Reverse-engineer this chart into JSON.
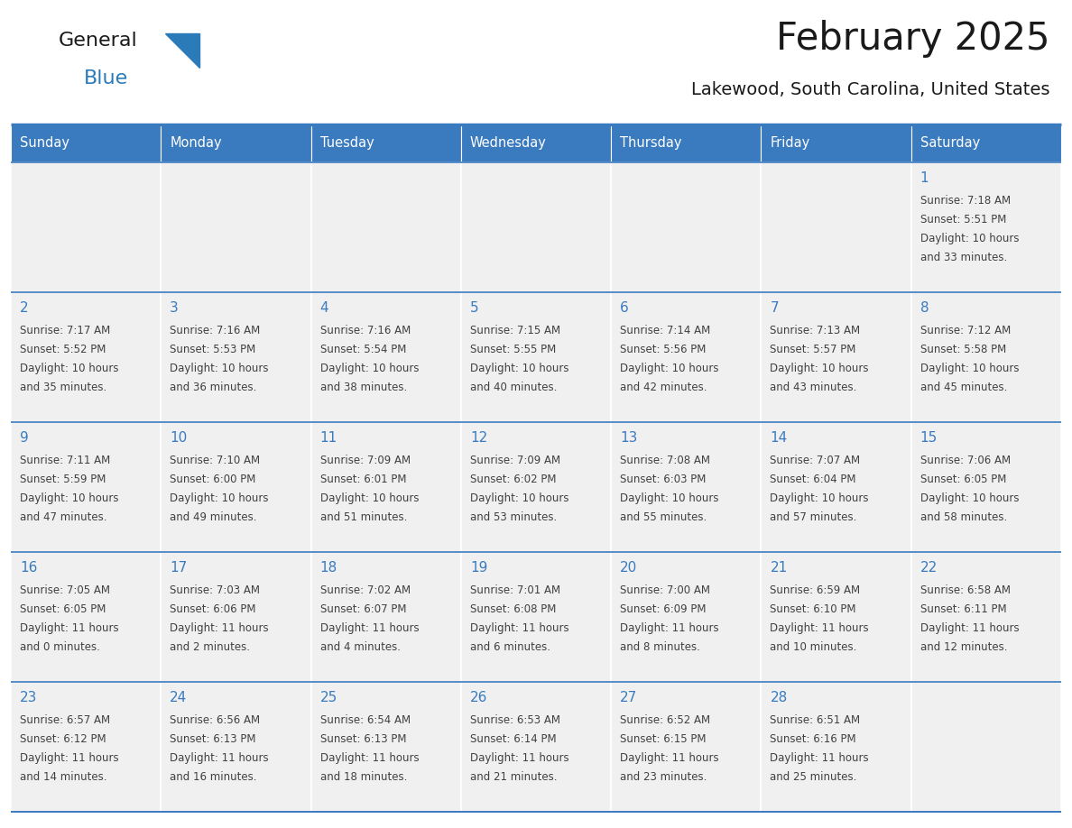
{
  "title": "February 2025",
  "subtitle": "Lakewood, South Carolina, United States",
  "header_color": "#3a7abf",
  "header_text_color": "#ffffff",
  "cell_bg_color": "#f0f0f0",
  "cell_border_color": "#3a7abf",
  "day_number_color": "#3a7abf",
  "text_color": "#404040",
  "days_of_week": [
    "Sunday",
    "Monday",
    "Tuesday",
    "Wednesday",
    "Thursday",
    "Friday",
    "Saturday"
  ],
  "calendar_data": [
    [
      null,
      null,
      null,
      null,
      null,
      null,
      {
        "day": 1,
        "sunrise": "7:18 AM",
        "sunset": "5:51 PM",
        "daylight_hrs": 10,
        "daylight_min": 33
      }
    ],
    [
      {
        "day": 2,
        "sunrise": "7:17 AM",
        "sunset": "5:52 PM",
        "daylight_hrs": 10,
        "daylight_min": 35
      },
      {
        "day": 3,
        "sunrise": "7:16 AM",
        "sunset": "5:53 PM",
        "daylight_hrs": 10,
        "daylight_min": 36
      },
      {
        "day": 4,
        "sunrise": "7:16 AM",
        "sunset": "5:54 PM",
        "daylight_hrs": 10,
        "daylight_min": 38
      },
      {
        "day": 5,
        "sunrise": "7:15 AM",
        "sunset": "5:55 PM",
        "daylight_hrs": 10,
        "daylight_min": 40
      },
      {
        "day": 6,
        "sunrise": "7:14 AM",
        "sunset": "5:56 PM",
        "daylight_hrs": 10,
        "daylight_min": 42
      },
      {
        "day": 7,
        "sunrise": "7:13 AM",
        "sunset": "5:57 PM",
        "daylight_hrs": 10,
        "daylight_min": 43
      },
      {
        "day": 8,
        "sunrise": "7:12 AM",
        "sunset": "5:58 PM",
        "daylight_hrs": 10,
        "daylight_min": 45
      }
    ],
    [
      {
        "day": 9,
        "sunrise": "7:11 AM",
        "sunset": "5:59 PM",
        "daylight_hrs": 10,
        "daylight_min": 47
      },
      {
        "day": 10,
        "sunrise": "7:10 AM",
        "sunset": "6:00 PM",
        "daylight_hrs": 10,
        "daylight_min": 49
      },
      {
        "day": 11,
        "sunrise": "7:09 AM",
        "sunset": "6:01 PM",
        "daylight_hrs": 10,
        "daylight_min": 51
      },
      {
        "day": 12,
        "sunrise": "7:09 AM",
        "sunset": "6:02 PM",
        "daylight_hrs": 10,
        "daylight_min": 53
      },
      {
        "day": 13,
        "sunrise": "7:08 AM",
        "sunset": "6:03 PM",
        "daylight_hrs": 10,
        "daylight_min": 55
      },
      {
        "day": 14,
        "sunrise": "7:07 AM",
        "sunset": "6:04 PM",
        "daylight_hrs": 10,
        "daylight_min": 57
      },
      {
        "day": 15,
        "sunrise": "7:06 AM",
        "sunset": "6:05 PM",
        "daylight_hrs": 10,
        "daylight_min": 58
      }
    ],
    [
      {
        "day": 16,
        "sunrise": "7:05 AM",
        "sunset": "6:05 PM",
        "daylight_hrs": 11,
        "daylight_min": 0
      },
      {
        "day": 17,
        "sunrise": "7:03 AM",
        "sunset": "6:06 PM",
        "daylight_hrs": 11,
        "daylight_min": 2
      },
      {
        "day": 18,
        "sunrise": "7:02 AM",
        "sunset": "6:07 PM",
        "daylight_hrs": 11,
        "daylight_min": 4
      },
      {
        "day": 19,
        "sunrise": "7:01 AM",
        "sunset": "6:08 PM",
        "daylight_hrs": 11,
        "daylight_min": 6
      },
      {
        "day": 20,
        "sunrise": "7:00 AM",
        "sunset": "6:09 PM",
        "daylight_hrs": 11,
        "daylight_min": 8
      },
      {
        "day": 21,
        "sunrise": "6:59 AM",
        "sunset": "6:10 PM",
        "daylight_hrs": 11,
        "daylight_min": 10
      },
      {
        "day": 22,
        "sunrise": "6:58 AM",
        "sunset": "6:11 PM",
        "daylight_hrs": 11,
        "daylight_min": 12
      }
    ],
    [
      {
        "day": 23,
        "sunrise": "6:57 AM",
        "sunset": "6:12 PM",
        "daylight_hrs": 11,
        "daylight_min": 14
      },
      {
        "day": 24,
        "sunrise": "6:56 AM",
        "sunset": "6:13 PM",
        "daylight_hrs": 11,
        "daylight_min": 16
      },
      {
        "day": 25,
        "sunrise": "6:54 AM",
        "sunset": "6:13 PM",
        "daylight_hrs": 11,
        "daylight_min": 18
      },
      {
        "day": 26,
        "sunrise": "6:53 AM",
        "sunset": "6:14 PM",
        "daylight_hrs": 11,
        "daylight_min": 21
      },
      {
        "day": 27,
        "sunrise": "6:52 AM",
        "sunset": "6:15 PM",
        "daylight_hrs": 11,
        "daylight_min": 23
      },
      {
        "day": 28,
        "sunrise": "6:51 AM",
        "sunset": "6:16 PM",
        "daylight_hrs": 11,
        "daylight_min": 25
      },
      null
    ]
  ],
  "logo_color_general": "#1a1a1a",
  "logo_color_blue": "#2b7bb9",
  "logo_triangle_color": "#2b7bb9"
}
